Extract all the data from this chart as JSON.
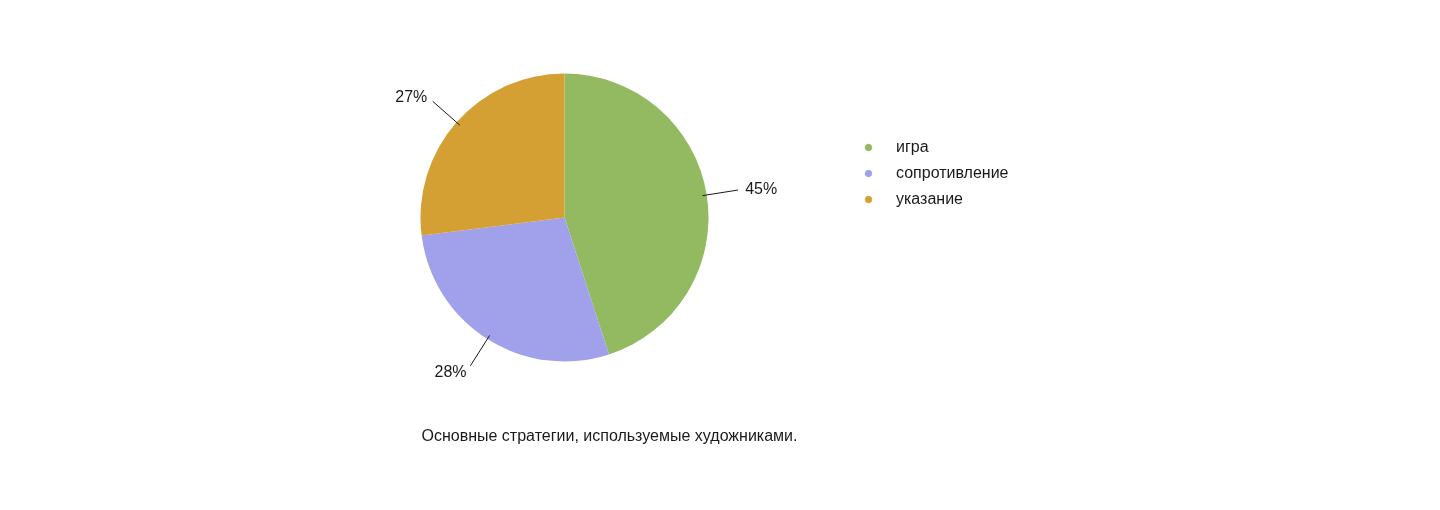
{
  "chart_data": {
    "type": "pie",
    "categories": [
      "игра",
      "сопротивление",
      "указание"
    ],
    "values": [
      45,
      28,
      27
    ],
    "value_labels": [
      "45%",
      "28%",
      "27%"
    ],
    "colors": [
      "#93ba60",
      "#a0a0eb",
      "#d4a034"
    ],
    "legend": "right",
    "annotations": [
      "Основные стратегии, используемые художниками."
    ]
  }
}
